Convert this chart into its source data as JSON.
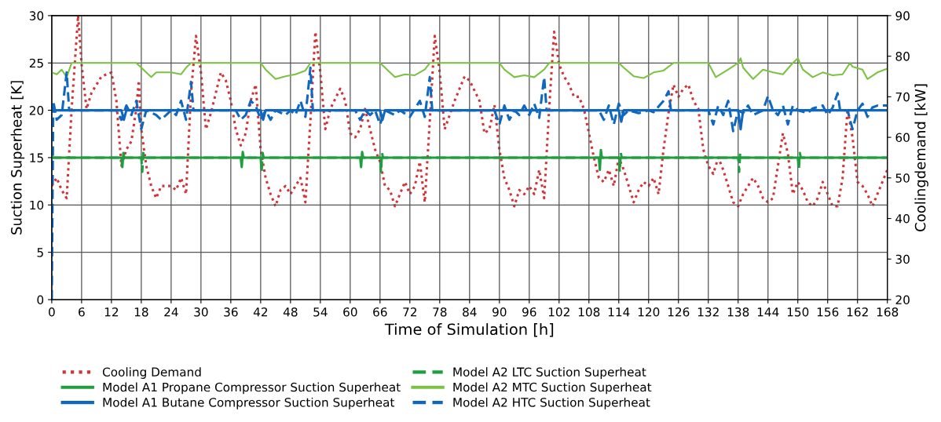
{
  "chart_data": {
    "type": "line",
    "xlabel": "Time of Simulation [h]",
    "ylabel": "Suction Superheat [K]",
    "y2label": "Coolingdemand [kW]",
    "xlim": [
      0,
      168
    ],
    "xticks": [
      0,
      6,
      12,
      18,
      24,
      30,
      36,
      42,
      48,
      54,
      60,
      66,
      72,
      78,
      84,
      90,
      96,
      102,
      108,
      114,
      120,
      126,
      132,
      138,
      144,
      150,
      156,
      162,
      168
    ],
    "ylim": [
      0,
      30
    ],
    "yticks": [
      0,
      5,
      10,
      15,
      20,
      25,
      30
    ],
    "y2lim": [
      20,
      90
    ],
    "y2ticks": [
      20,
      30,
      40,
      50,
      60,
      70,
      80,
      90
    ],
    "grid": true,
    "legend": "bottom",
    "marker": "none",
    "series": [
      {
        "name": "Cooling Demand",
        "color": "#d13438",
        "axis": "y2",
        "line_style": "dotted",
        "x": [
          0,
          1,
          2,
          3,
          4,
          5.3,
          6,
          7,
          8,
          10,
          12,
          13,
          14,
          15,
          16,
          17,
          17.5,
          18,
          19,
          20,
          21,
          22,
          24,
          25,
          26,
          27,
          28,
          29,
          30,
          31,
          32,
          34,
          35,
          36,
          37,
          38,
          39,
          40,
          41,
          42,
          43,
          44,
          45,
          46,
          47,
          48,
          49,
          50,
          51,
          52,
          53,
          54,
          55,
          56,
          58,
          59,
          60,
          61,
          62,
          63,
          64,
          65,
          66,
          67,
          68,
          69,
          70,
          71,
          72,
          73,
          74,
          75,
          76,
          77,
          78,
          79,
          81,
          83,
          84,
          86,
          87,
          88,
          89,
          90,
          91,
          92,
          93,
          94,
          95,
          96,
          97,
          98,
          99,
          100,
          101,
          102,
          103,
          104,
          105,
          106,
          107,
          108,
          109,
          110,
          111,
          112,
          113,
          114,
          115,
          116,
          117,
          118,
          119,
          120,
          121,
          122,
          123,
          124,
          125,
          126,
          127,
          128,
          129,
          130,
          131,
          132,
          133,
          134,
          135,
          136,
          137,
          138,
          139,
          140,
          141,
          142,
          143,
          144,
          145,
          146,
          147,
          148,
          149,
          150,
          151,
          152,
          153,
          154,
          155,
          156,
          157,
          158,
          159,
          160,
          161,
          162,
          163,
          164,
          165,
          166,
          167,
          168
        ],
        "values": [
          48,
          50,
          47,
          45,
          67,
          90,
          78,
          67,
          71,
          75,
          76,
          69,
          53,
          57,
          59,
          67,
          74,
          62,
          53,
          48,
          45,
          48,
          48,
          47,
          50,
          46,
          71,
          85,
          76,
          62,
          66,
          76,
          74,
          69,
          62,
          58,
          61,
          69,
          73,
          57,
          50,
          46,
          43,
          47,
          48,
          46,
          48,
          50,
          44,
          64,
          86,
          76,
          62,
          67,
          72,
          69,
          61,
          60,
          62,
          67,
          62,
          57,
          54,
          48,
          47,
          43,
          46,
          49,
          46,
          48,
          54,
          44,
          64,
          85,
          76,
          62,
          69,
          75,
          74,
          69,
          61,
          62,
          68,
          57,
          50,
          47,
          43,
          47,
          46,
          48,
          46,
          52,
          45,
          67,
          86,
          78,
          75,
          73,
          70,
          70,
          67,
          61,
          55,
          50,
          49,
          52,
          48,
          55,
          52,
          48,
          44,
          47,
          49,
          48,
          50,
          46,
          57,
          66,
          73,
          70,
          72,
          73,
          69,
          67,
          57,
          53,
          51,
          55,
          52,
          48,
          44,
          43,
          46,
          48,
          50,
          48,
          45,
          44,
          45,
          53,
          61,
          56,
          46,
          49,
          47,
          44,
          43,
          45,
          49,
          46,
          43,
          43,
          50,
          67,
          60,
          49,
          48,
          46,
          43,
          46,
          49,
          52
        ]
      },
      {
        "name": "Model A1 Propane Compressor Suction Superheat",
        "color": "#1e9e3e",
        "line_style": "solid",
        "x": [
          0,
          14,
          14.2,
          14.4,
          14.6,
          38,
          38.2,
          38.4,
          38.6,
          62,
          62.2,
          62.4,
          62.6,
          110,
          110.2,
          110.4,
          110.6,
          168
        ],
        "values": [
          15,
          15,
          14,
          15.5,
          15,
          15,
          14,
          15.6,
          15,
          15,
          14,
          15.6,
          15,
          15,
          13.7,
          15.8,
          15,
          15
        ]
      },
      {
        "name": "Model A1 Butane Compressor Suction Superheat",
        "color": "#0f67c0",
        "line_style": "solid",
        "x": [
          0,
          14,
          14.5,
          15,
          42,
          42.5,
          43,
          66,
          66.5,
          67,
          114,
          114.5,
          115,
          138,
          138.5,
          139,
          168
        ],
        "values": [
          20,
          20,
          19,
          20,
          20,
          19,
          20,
          20,
          19,
          20,
          20,
          18.8,
          20,
          20,
          18,
          20,
          20
        ]
      },
      {
        "name": "Model A2 LTC Suction Superheat",
        "color": "#1e9e3e",
        "line_style": "dashed",
        "x": [
          0,
          18,
          18.2,
          18.4,
          18.6,
          42,
          42.2,
          42.4,
          42.6,
          66,
          66.2,
          66.4,
          66.6,
          114,
          114.2,
          114.4,
          114.6,
          138,
          138.2,
          138.4,
          138.6,
          150,
          150.2,
          150.4,
          150.6,
          168
        ],
        "values": [
          15,
          15,
          13.5,
          15.5,
          15,
          15,
          13.5,
          15.5,
          15,
          15,
          13.5,
          15.5,
          15,
          15,
          13.5,
          15.5,
          15,
          15,
          13.5,
          15.5,
          15,
          15,
          13.7,
          15.5,
          15,
          15
        ]
      },
      {
        "name": "Model A2 MTC Suction Superheat",
        "color": "#7cc242",
        "line_style": "solid",
        "x": [
          0,
          1,
          2,
          3,
          4,
          17,
          18,
          20,
          21,
          22,
          24,
          26,
          27,
          28,
          42,
          43,
          45,
          47,
          49,
          51,
          52,
          66,
          67,
          69,
          71,
          73,
          75,
          76,
          90,
          91,
          93,
          95,
          97,
          99,
          100,
          114,
          115,
          117,
          119,
          121,
          123,
          125,
          132,
          133.5,
          136,
          138,
          138.5,
          139,
          141,
          143,
          145,
          147,
          149,
          150,
          151,
          153,
          155,
          157,
          159,
          160.5,
          161,
          163,
          164,
          166,
          168
        ],
        "values": [
          24,
          23.8,
          24.3,
          23.5,
          25,
          25,
          24.5,
          23.5,
          24,
          24,
          24,
          23.8,
          24.5,
          25,
          25,
          24.3,
          23.3,
          23.6,
          23.8,
          24.2,
          25,
          25,
          24.5,
          23.5,
          23.8,
          23.7,
          24.3,
          25,
          25,
          24.3,
          23.5,
          23.7,
          23.5,
          24.3,
          25,
          25,
          24.5,
          23.6,
          23.4,
          24,
          24.2,
          25,
          25,
          23.5,
          24.3,
          25,
          25.5,
          24.5,
          23.3,
          24.3,
          24,
          23.8,
          25,
          25.5,
          24.3,
          23.5,
          24,
          23.7,
          23.8,
          25,
          24.6,
          24.3,
          23.3,
          24,
          24.4
        ]
      },
      {
        "name": "Model A2 HTC Suction Superheat",
        "color": "#0f67c0",
        "line_style": "dashed",
        "x": [
          0,
          0.3,
          1,
          2,
          3,
          3.5,
          13,
          14,
          15,
          16,
          17,
          18,
          19,
          21,
          22,
          24,
          25,
          26,
          27,
          28,
          28.5,
          37,
          38,
          39,
          40,
          41,
          42,
          43,
          44,
          45,
          47,
          48,
          49,
          50,
          51,
          52,
          52.5,
          61,
          62,
          63,
          64,
          65,
          66,
          67,
          69,
          70,
          72,
          74,
          75,
          76,
          76.5,
          89,
          90,
          91,
          92,
          93,
          94,
          95,
          96,
          97,
          98,
          99,
          99.5,
          110,
          111,
          112,
          113,
          114,
          115,
          116,
          118,
          120,
          121,
          123,
          124,
          124.5,
          132,
          133,
          134,
          135,
          136,
          137,
          138,
          139,
          140,
          141,
          143,
          144,
          145,
          146,
          147,
          148,
          149,
          150,
          152,
          153,
          155,
          156,
          157,
          158,
          158.5,
          160,
          161,
          162,
          163,
          164,
          165,
          166,
          168
        ],
        "values": [
          0,
          21,
          19,
          19.5,
          24,
          20,
          20,
          19,
          20.5,
          19.5,
          21,
          18,
          20,
          19.5,
          19,
          20,
          19.5,
          21,
          19,
          23,
          20,
          20,
          19,
          19.5,
          21,
          20.5,
          19,
          20,
          19,
          20,
          19.5,
          20,
          19.5,
          21,
          19.3,
          24.5,
          20,
          20,
          19,
          20,
          19.5,
          20,
          18.5,
          20,
          19.5,
          20,
          19.3,
          21,
          19.3,
          23.5,
          20,
          20,
          18.5,
          20.5,
          19,
          20,
          19.5,
          20.5,
          19.5,
          20.7,
          19.2,
          23.5,
          20,
          20,
          19,
          20.5,
          18.5,
          20.7,
          19.5,
          20,
          19.7,
          20,
          19.8,
          21,
          22,
          20,
          20,
          18.5,
          20.5,
          19.5,
          21,
          17.8,
          20,
          19.7,
          20.5,
          19.5,
          20,
          21.5,
          20,
          19.5,
          20.5,
          18.5,
          20.5,
          20,
          19.7,
          20.2,
          20.5,
          19.5,
          20.3,
          21.8,
          20,
          20,
          18,
          20,
          20.7,
          19.3,
          20.3,
          20.5,
          20.5
        ]
      }
    ]
  }
}
